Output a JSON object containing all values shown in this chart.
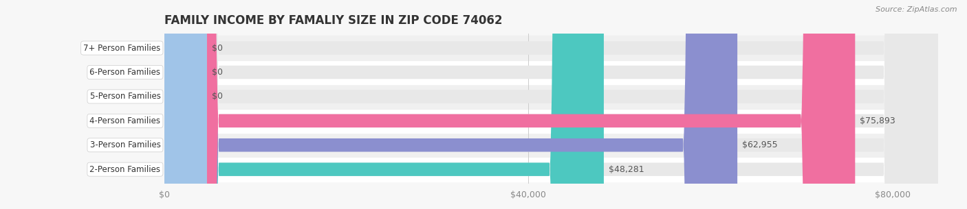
{
  "title": "FAMILY INCOME BY FAMALIY SIZE IN ZIP CODE 74062",
  "source": "Source: ZipAtlas.com",
  "categories": [
    "2-Person Families",
    "3-Person Families",
    "4-Person Families",
    "5-Person Families",
    "6-Person Families",
    "7+ Person Families"
  ],
  "values": [
    48281,
    62955,
    75893,
    0,
    0,
    0
  ],
  "bar_colors": [
    "#4dc8c0",
    "#8b8fcf",
    "#f06fa0",
    "#f5c89a",
    "#f0a0a0",
    "#a0c4e8"
  ],
  "bar_bg_color": "#e8e8e8",
  "bg_color": "#f7f7f7",
  "xlim": [
    0,
    85000
  ],
  "xticks": [
    0,
    40000,
    80000
  ],
  "xticklabels": [
    "$0",
    "$40,000",
    "$80,000"
  ],
  "title_fontsize": 12,
  "label_fontsize": 9,
  "bar_height": 0.55,
  "fig_width": 14.06,
  "fig_height": 3.05
}
